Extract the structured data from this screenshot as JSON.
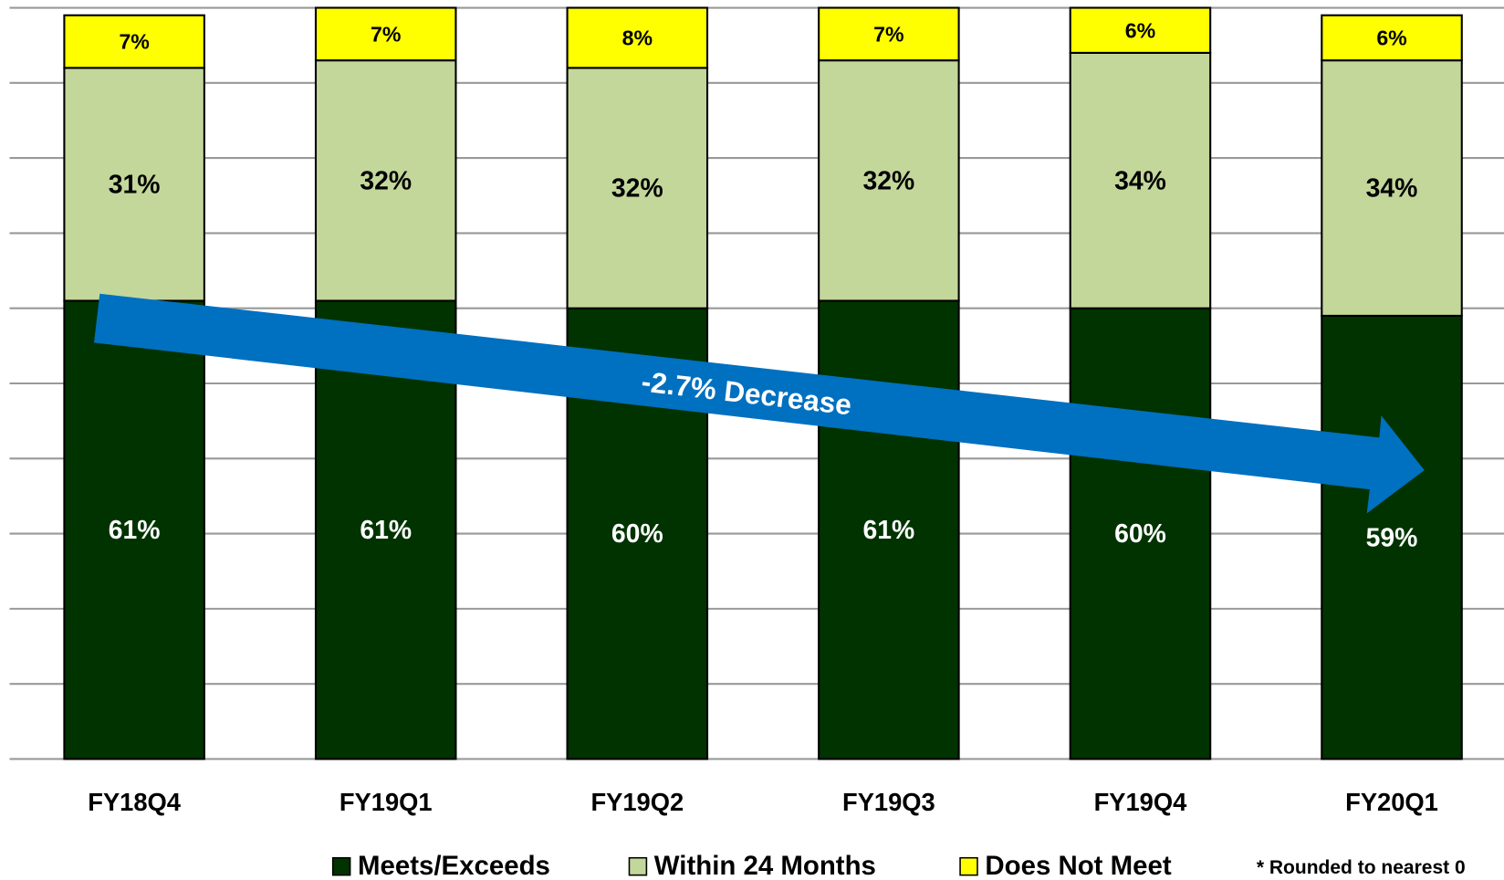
{
  "chart_data": {
    "type": "stacked_bar",
    "categories": [
      "FY18Q4",
      "FY19Q1",
      "FY19Q2",
      "FY19Q3",
      "FY19Q4",
      "FY20Q1"
    ],
    "series": [
      {
        "name": "Meets/Exceeds",
        "color": "#003300",
        "values": [
          61,
          61,
          60,
          61,
          60,
          59
        ],
        "value_labels": [
          "61%",
          "61%",
          "60%",
          "61%",
          "60%",
          "59%"
        ]
      },
      {
        "name": "Within 24 Months",
        "color": "#c4d79b",
        "values": [
          31,
          32,
          32,
          32,
          34,
          34
        ],
        "value_labels": [
          "31%",
          "32%",
          "32%",
          "32%",
          "34%",
          "34%"
        ]
      },
      {
        "name": "Does Not Meet",
        "color": "#ffff00",
        "values": [
          7,
          7,
          8,
          7,
          6,
          6
        ],
        "value_labels": [
          "7%",
          "7%",
          "8%",
          "7%",
          "6%",
          "6%"
        ]
      }
    ],
    "ylim": [
      0,
      100
    ],
    "yticks": [
      0,
      10,
      20,
      30,
      40,
      50,
      60,
      70,
      80,
      90,
      100
    ],
    "grid": true,
    "annotation": "-2.7% Decrease",
    "footnote": "* Rounded to nearest  0"
  }
}
